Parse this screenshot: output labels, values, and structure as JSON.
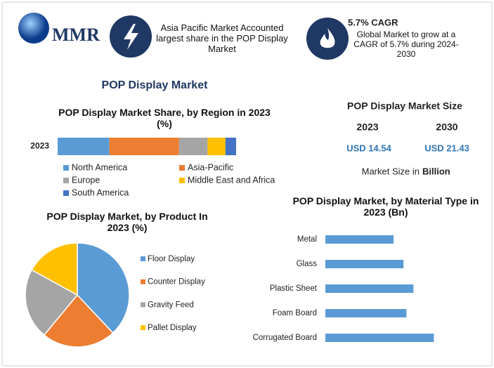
{
  "header": {
    "logo_text": "MMR",
    "info_1": "Asia Pacific Market Accounted largest share in the POP Display Market",
    "info_2_title": "5.7% CAGR",
    "info_2_text": "Global Market to grow at a CAGR of 5.7% during 2024-2030"
  },
  "page_title": "POP Display Market",
  "market_size": {
    "title": "POP Display Market Size",
    "years": [
      "2023",
      "2030"
    ],
    "values": [
      "USD 14.54",
      "USD 21.43"
    ],
    "note": "Market Size in",
    "note_unit": "Billion"
  },
  "chart_data": [
    {
      "type": "stacked-bar",
      "title": "POP Display Market Share, by Region in 2023 (%)",
      "categories": [
        "2023"
      ],
      "xlim": [
        0,
        100
      ],
      "series": [
        {
          "name": "North America",
          "color": "#5b9bd5",
          "values": [
            29
          ]
        },
        {
          "name": "Asia-Pacific",
          "color": "#ed7d31",
          "values": [
            39
          ]
        },
        {
          "name": "Europe",
          "color": "#a5a5a5",
          "values": [
            16
          ]
        },
        {
          "name": "Middle East and Africa",
          "color": "#ffc000",
          "values": [
            10
          ]
        },
        {
          "name": "South America",
          "color": "#4472c4",
          "values": [
            6
          ]
        }
      ]
    },
    {
      "type": "pie",
      "title": "POP Display Market, by Product In 2023 (%)",
      "categories": [
        "Floor Display",
        "Counter Display",
        "Gravity Feed",
        "Pallet Display"
      ],
      "values": [
        38,
        23,
        22,
        17
      ],
      "colors": [
        "#5b9bd5",
        "#ed7d31",
        "#a5a5a5",
        "#ffc000"
      ]
    },
    {
      "type": "hbar",
      "title": "POP Display Market, by Material Type in 2023 (Bn)",
      "categories": [
        "Metal",
        "Glass",
        "Plastic Sheet",
        "Foam Board",
        "Corrugated Board"
      ],
      "values": [
        2.34,
        2.68,
        3.02,
        2.78,
        3.72
      ],
      "color": "#5b9bd5",
      "xlim": [
        0,
        4
      ]
    }
  ]
}
